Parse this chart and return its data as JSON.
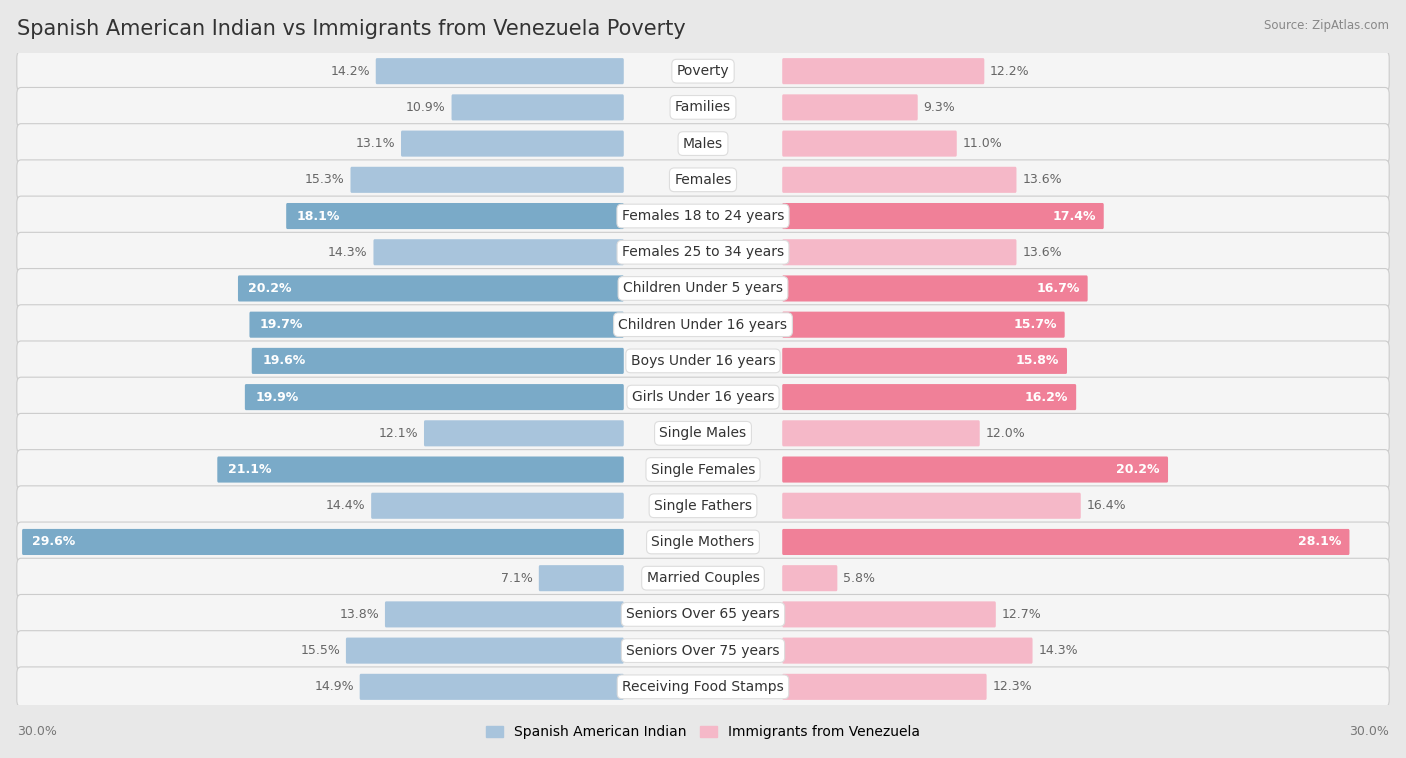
{
  "title": "Spanish American Indian vs Immigrants from Venezuela Poverty",
  "source": "Source: ZipAtlas.com",
  "categories": [
    "Poverty",
    "Families",
    "Males",
    "Females",
    "Females 18 to 24 years",
    "Females 25 to 34 years",
    "Children Under 5 years",
    "Children Under 16 years",
    "Boys Under 16 years",
    "Girls Under 16 years",
    "Single Males",
    "Single Females",
    "Single Fathers",
    "Single Mothers",
    "Married Couples",
    "Seniors Over 65 years",
    "Seniors Over 75 years",
    "Receiving Food Stamps"
  ],
  "left_values": [
    14.2,
    10.9,
    13.1,
    15.3,
    18.1,
    14.3,
    20.2,
    19.7,
    19.6,
    19.9,
    12.1,
    21.1,
    14.4,
    29.6,
    7.1,
    13.8,
    15.5,
    14.9
  ],
  "right_values": [
    12.2,
    9.3,
    11.0,
    13.6,
    17.4,
    13.6,
    16.7,
    15.7,
    15.8,
    16.2,
    12.0,
    20.2,
    16.4,
    28.1,
    5.8,
    12.7,
    14.3,
    12.3
  ],
  "left_label": "Spanish American Indian",
  "right_label": "Immigrants from Venezuela",
  "left_color_normal": "#a8c4dc",
  "left_color_highlight": "#7aaac8",
  "right_color_normal": "#f5b8c8",
  "right_color_highlight": "#f08098",
  "max_value": 30.0,
  "bg_color": "#e8e8e8",
  "row_bg_color": "#f5f5f5",
  "highlight_rows": [
    4,
    6,
    7,
    8,
    9,
    11,
    13
  ],
  "title_fontsize": 15,
  "bar_height": 0.62,
  "category_fontsize": 10,
  "value_fontsize": 9
}
